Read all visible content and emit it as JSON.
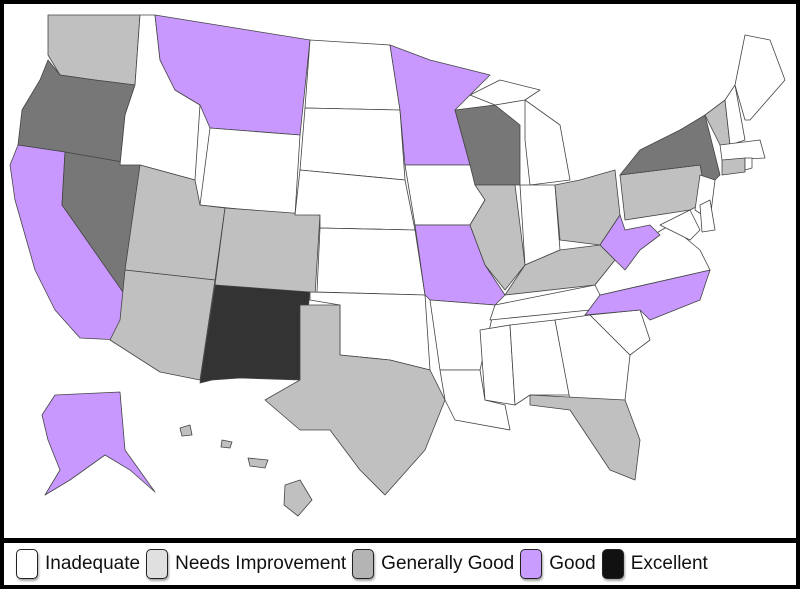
{
  "legend": [
    {
      "key": "inadequate",
      "label": "Inadequate",
      "color": "#ffffff"
    },
    {
      "key": "needs_improvement",
      "label": "Needs Improvement",
      "color": "#e0e0e0"
    },
    {
      "key": "generally_good",
      "label": "Generally Good",
      "color": "#b4b4b4"
    },
    {
      "key": "good",
      "label": "Good",
      "color": "#c99cff"
    },
    {
      "key": "excellent",
      "label": "Excellent",
      "color": "#111111"
    }
  ],
  "map_fill_colors": {
    "inadequate": "#ffffff",
    "needs_improvement": "#c0c0c0",
    "generally_good": "#777777",
    "good": "#c898ff",
    "excellent": "#333333"
  },
  "states": {
    "WA": "needs_improvement",
    "OR": "generally_good",
    "CA": "good",
    "NV": "generally_good",
    "ID": "inadequate",
    "MT": "good",
    "WY": "inadequate",
    "UT": "needs_improvement",
    "AZ": "needs_improvement",
    "CO": "needs_improvement",
    "NM": "excellent",
    "ND": "inadequate",
    "SD": "inadequate",
    "NE": "inadequate",
    "KS": "inadequate",
    "OK": "inadequate",
    "TX": "needs_improvement",
    "MN": "good",
    "IA": "inadequate",
    "MO": "good",
    "AR": "inadequate",
    "LA": "inadequate",
    "WI": "generally_good",
    "IL": "needs_improvement",
    "MI": "inadequate",
    "IN": "inadequate",
    "OH": "needs_improvement",
    "KY": "needs_improvement",
    "TN": "inadequate",
    "MS": "inadequate",
    "AL": "inadequate",
    "GA": "inadequate",
    "FL": "needs_improvement",
    "SC": "inadequate",
    "NC": "good",
    "VA": "inadequate",
    "WV": "good",
    "PA": "needs_improvement",
    "NY": "generally_good",
    "NJ": "inadequate",
    "MD": "inadequate",
    "DE": "inadequate",
    "VT": "needs_improvement",
    "NH": "inadequate",
    "ME": "inadequate",
    "MA": "inadequate",
    "CT": "needs_improvement",
    "RI": "inadequate",
    "AK": "good",
    "HI": "needs_improvement"
  }
}
